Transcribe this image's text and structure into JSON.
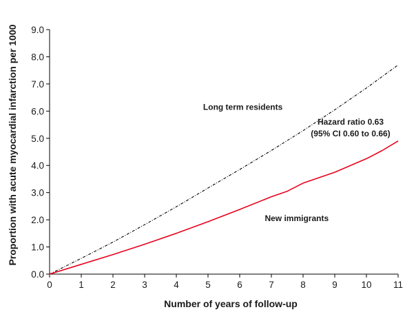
{
  "chart_data": {
    "type": "line",
    "title": "",
    "xlabel": "Number of years of follow-up",
    "ylabel": "Proportion with acute myocardial infarction per 1000",
    "xlim": [
      0,
      11
    ],
    "ylim": [
      0,
      9.0
    ],
    "x_ticks": [
      "0",
      "1",
      "2",
      "3",
      "4",
      "5",
      "6",
      "7",
      "8",
      "9",
      "10",
      "11"
    ],
    "y_ticks": [
      "0.0",
      "1.0",
      "2.0",
      "3.0",
      "4.0",
      "5.0",
      "6.0",
      "7.0",
      "8.0",
      "9.0"
    ],
    "grid": false,
    "legend": "none",
    "series": [
      {
        "name": "Long term residents",
        "color": "#000000",
        "style": "dash-dot",
        "x": [
          0,
          1,
          2,
          3,
          4,
          5,
          6,
          7,
          8,
          9,
          10,
          11
        ],
        "y": [
          0,
          0.58,
          1.18,
          1.82,
          2.48,
          3.17,
          3.85,
          4.55,
          5.28,
          6.05,
          6.85,
          7.7
        ]
      },
      {
        "name": "New immigrants",
        "color": "#e8001a",
        "style": "solid",
        "x": [
          0,
          1,
          2,
          3,
          4,
          5,
          6,
          7,
          7.5,
          8,
          9,
          10,
          10.5,
          11
        ],
        "y": [
          0,
          0.36,
          0.72,
          1.1,
          1.5,
          1.93,
          2.38,
          2.85,
          3.05,
          3.35,
          3.75,
          4.25,
          4.55,
          4.9
        ]
      }
    ],
    "annotations": [
      {
        "text": "Long term residents",
        "x": 6.1,
        "y": 6.05
      },
      {
        "text": "New immigrants",
        "x": 7.8,
        "y": 1.95
      },
      {
        "text": "Hazard ratio 0.63",
        "x": 9.5,
        "y": 5.5
      },
      {
        "text": "(95% CI 0.60 to 0.66)",
        "x": 9.5,
        "y": 5.07
      }
    ]
  }
}
